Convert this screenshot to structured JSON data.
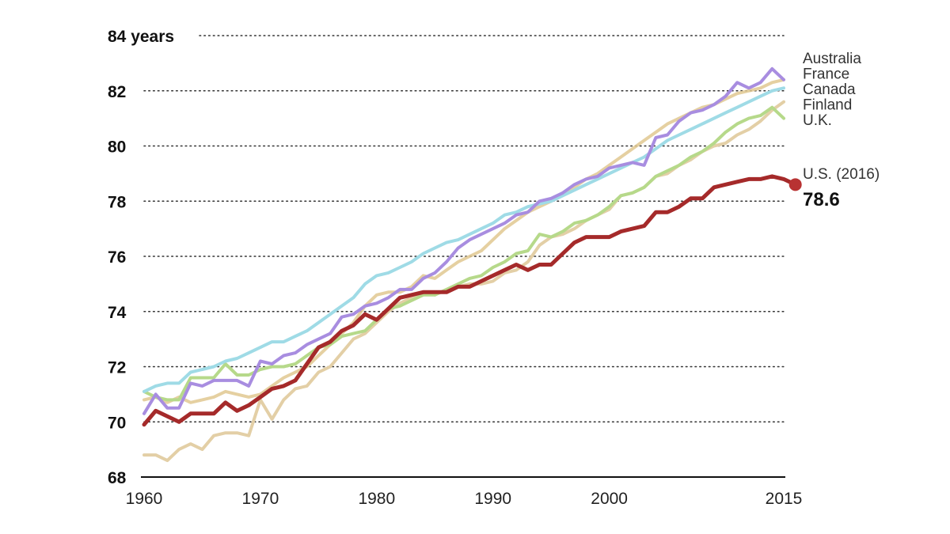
{
  "chart_data": {
    "type": "line",
    "title": "",
    "xlabel": "",
    "ylabel": "",
    "xlim": [
      1960,
      2015
    ],
    "ylim": [
      68,
      84
    ],
    "y_ticks": [
      {
        "value": 84,
        "label": "84 years"
      },
      {
        "value": 82,
        "label": "82"
      },
      {
        "value": 80,
        "label": "80"
      },
      {
        "value": 78,
        "label": "78"
      },
      {
        "value": 76,
        "label": "76"
      },
      {
        "value": 74,
        "label": "74"
      },
      {
        "value": 72,
        "label": "72"
      },
      {
        "value": 70,
        "label": "70"
      },
      {
        "value": 68,
        "label": "68"
      }
    ],
    "x_ticks": [
      {
        "value": 1960,
        "label": "1960"
      },
      {
        "value": 1970,
        "label": "1970"
      },
      {
        "value": 1980,
        "label": "1980"
      },
      {
        "value": 1990,
        "label": "1990"
      },
      {
        "value": 2000,
        "label": "2000"
      },
      {
        "value": 2015,
        "label": "2015"
      }
    ],
    "grid": true,
    "legend_position": "right",
    "series": [
      {
        "name": "Australia",
        "color": "#e0c890",
        "x": [
          1960,
          1961,
          1962,
          1963,
          1964,
          1965,
          1966,
          1967,
          1968,
          1969,
          1970,
          1971,
          1972,
          1973,
          1974,
          1975,
          1976,
          1977,
          1978,
          1979,
          1980,
          1981,
          1982,
          1983,
          1984,
          1985,
          1986,
          1987,
          1988,
          1989,
          1990,
          1991,
          1992,
          1993,
          1994,
          1995,
          1996,
          1997,
          1998,
          1999,
          2000,
          2001,
          2002,
          2003,
          2004,
          2005,
          2006,
          2007,
          2008,
          2009,
          2010,
          2011,
          2012,
          2013,
          2014,
          2015
        ],
        "y": [
          70.8,
          70.9,
          70.7,
          70.9,
          70.7,
          70.8,
          70.9,
          71.1,
          71.0,
          70.9,
          71.0,
          71.3,
          71.6,
          71.8,
          72.0,
          72.4,
          72.8,
          73.2,
          73.6,
          74.2,
          74.6,
          74.7,
          74.7,
          74.9,
          75.3,
          75.2,
          75.5,
          75.8,
          76.0,
          76.2,
          76.6,
          77.0,
          77.3,
          77.6,
          77.8,
          78.0,
          78.3,
          78.5,
          78.8,
          79.0,
          79.3,
          79.6,
          79.9,
          80.2,
          80.5,
          80.8,
          81.0,
          81.2,
          81.4,
          81.5,
          81.7,
          81.9,
          82.0,
          82.1,
          82.3,
          82.4
        ]
      },
      {
        "name": "France",
        "color": "#a88de0",
        "x": [
          1960,
          1961,
          1962,
          1963,
          1964,
          1965,
          1966,
          1967,
          1968,
          1969,
          1970,
          1971,
          1972,
          1973,
          1974,
          1975,
          1976,
          1977,
          1978,
          1979,
          1980,
          1981,
          1982,
          1983,
          1984,
          1985,
          1986,
          1987,
          1988,
          1989,
          1990,
          1991,
          1992,
          1993,
          1994,
          1995,
          1996,
          1997,
          1998,
          1999,
          2000,
          2001,
          2002,
          2003,
          2004,
          2005,
          2006,
          2007,
          2008,
          2009,
          2010,
          2011,
          2012,
          2013,
          2014,
          2015
        ],
        "y": [
          70.3,
          71.0,
          70.5,
          70.5,
          71.4,
          71.3,
          71.5,
          71.5,
          71.5,
          71.3,
          72.2,
          72.1,
          72.4,
          72.5,
          72.8,
          73.0,
          73.2,
          73.8,
          73.9,
          74.2,
          74.3,
          74.5,
          74.8,
          74.8,
          75.2,
          75.4,
          75.8,
          76.3,
          76.6,
          76.8,
          77.0,
          77.2,
          77.5,
          77.6,
          78.0,
          78.1,
          78.3,
          78.6,
          78.8,
          78.9,
          79.2,
          79.3,
          79.4,
          79.3,
          80.3,
          80.4,
          80.9,
          81.2,
          81.3,
          81.5,
          81.8,
          82.3,
          82.1,
          82.3,
          82.8,
          82.4
        ]
      },
      {
        "name": "Canada",
        "color": "#9fdbe6",
        "x": [
          1960,
          1961,
          1962,
          1963,
          1964,
          1965,
          1966,
          1967,
          1968,
          1969,
          1970,
          1971,
          1972,
          1973,
          1974,
          1975,
          1976,
          1977,
          1978,
          1979,
          1980,
          1981,
          1982,
          1983,
          1984,
          1985,
          1986,
          1987,
          1988,
          1989,
          1990,
          1991,
          1992,
          1993,
          1994,
          1995,
          1996,
          1997,
          1998,
          1999,
          2000,
          2001,
          2002,
          2003,
          2004,
          2005,
          2006,
          2007,
          2008,
          2009,
          2010,
          2011,
          2012,
          2013,
          2014,
          2015
        ],
        "y": [
          71.1,
          71.3,
          71.4,
          71.4,
          71.8,
          71.9,
          72.0,
          72.2,
          72.3,
          72.5,
          72.7,
          72.9,
          72.9,
          73.1,
          73.3,
          73.6,
          73.9,
          74.2,
          74.5,
          75.0,
          75.3,
          75.4,
          75.6,
          75.8,
          76.1,
          76.3,
          76.5,
          76.6,
          76.8,
          77.0,
          77.2,
          77.5,
          77.6,
          77.8,
          77.9,
          78.0,
          78.2,
          78.4,
          78.6,
          78.8,
          79.0,
          79.2,
          79.4,
          79.6,
          79.9,
          80.2,
          80.4,
          80.6,
          80.8,
          81.0,
          81.2,
          81.4,
          81.6,
          81.8,
          82.0,
          82.1
        ]
      },
      {
        "name": "Finland",
        "color": "#e3cfa6",
        "x": [
          1960,
          1961,
          1962,
          1963,
          1964,
          1965,
          1966,
          1967,
          1968,
          1969,
          1970,
          1971,
          1972,
          1973,
          1974,
          1975,
          1976,
          1977,
          1978,
          1979,
          1980,
          1981,
          1982,
          1983,
          1984,
          1985,
          1986,
          1987,
          1988,
          1989,
          1990,
          1991,
          1992,
          1993,
          1994,
          1995,
          1996,
          1997,
          1998,
          1999,
          2000,
          2001,
          2002,
          2003,
          2004,
          2005,
          2006,
          2007,
          2008,
          2009,
          2010,
          2011,
          2012,
          2013,
          2014,
          2015
        ],
        "y": [
          68.8,
          68.8,
          68.6,
          69.0,
          69.2,
          69.0,
          69.5,
          69.6,
          69.6,
          69.5,
          70.8,
          70.1,
          70.8,
          71.2,
          71.3,
          71.8,
          72.0,
          72.5,
          73.0,
          73.2,
          73.6,
          74.0,
          74.3,
          74.5,
          74.7,
          74.6,
          74.8,
          74.9,
          75.0,
          75.0,
          75.1,
          75.4,
          75.5,
          75.8,
          76.4,
          76.7,
          76.8,
          77.0,
          77.3,
          77.5,
          77.7,
          78.2,
          78.3,
          78.5,
          78.9,
          79.0,
          79.3,
          79.5,
          79.8,
          80.0,
          80.1,
          80.4,
          80.6,
          80.9,
          81.3,
          81.6
        ]
      },
      {
        "name": "U.K.",
        "color": "#b6d98a",
        "x": [
          1960,
          1961,
          1962,
          1963,
          1964,
          1965,
          1966,
          1967,
          1968,
          1969,
          1970,
          1971,
          1972,
          1973,
          1974,
          1975,
          1976,
          1977,
          1978,
          1979,
          1980,
          1981,
          1982,
          1983,
          1984,
          1985,
          1986,
          1987,
          1988,
          1989,
          1990,
          1991,
          1992,
          1993,
          1994,
          1995,
          1996,
          1997,
          1998,
          1999,
          2000,
          2001,
          2002,
          2003,
          2004,
          2005,
          2006,
          2007,
          2008,
          2009,
          2010,
          2011,
          2012,
          2013,
          2014,
          2015
        ],
        "y": [
          71.1,
          70.9,
          70.8,
          70.8,
          71.6,
          71.6,
          71.6,
          72.1,
          71.7,
          71.7,
          71.9,
          72.0,
          72.0,
          72.1,
          72.4,
          72.7,
          72.8,
          73.1,
          73.2,
          73.3,
          73.7,
          74.1,
          74.2,
          74.4,
          74.6,
          74.6,
          74.8,
          75.0,
          75.2,
          75.3,
          75.6,
          75.8,
          76.1,
          76.2,
          76.8,
          76.7,
          76.9,
          77.2,
          77.3,
          77.5,
          77.8,
          78.2,
          78.3,
          78.5,
          78.9,
          79.1,
          79.3,
          79.6,
          79.8,
          80.1,
          80.5,
          80.8,
          81.0,
          81.1,
          81.4,
          81.0
        ]
      },
      {
        "name": "U.S.",
        "color": "#a52a2a",
        "x": [
          1960,
          1961,
          1962,
          1963,
          1964,
          1965,
          1966,
          1967,
          1968,
          1969,
          1970,
          1971,
          1972,
          1973,
          1974,
          1975,
          1976,
          1977,
          1978,
          1979,
          1980,
          1981,
          1982,
          1983,
          1984,
          1985,
          1986,
          1987,
          1988,
          1989,
          1990,
          1991,
          1992,
          1993,
          1994,
          1995,
          1996,
          1997,
          1998,
          1999,
          2000,
          2001,
          2002,
          2003,
          2004,
          2005,
          2006,
          2007,
          2008,
          2009,
          2010,
          2011,
          2012,
          2013,
          2014,
          2015,
          2016
        ],
        "y": [
          69.9,
          70.4,
          70.2,
          70.0,
          70.3,
          70.3,
          70.3,
          70.7,
          70.4,
          70.6,
          70.9,
          71.2,
          71.3,
          71.5,
          72.1,
          72.7,
          72.9,
          73.3,
          73.5,
          73.9,
          73.7,
          74.1,
          74.5,
          74.6,
          74.7,
          74.7,
          74.7,
          74.9,
          74.9,
          75.1,
          75.3,
          75.5,
          75.7,
          75.5,
          75.7,
          75.7,
          76.1,
          76.5,
          76.7,
          76.7,
          76.7,
          76.9,
          77.0,
          77.1,
          77.6,
          77.6,
          77.8,
          78.1,
          78.1,
          78.5,
          78.6,
          78.7,
          78.8,
          78.8,
          78.9,
          78.8,
          78.6
        ]
      }
    ],
    "annotations": {
      "legend_labels": [
        "Australia",
        "France",
        "Canada",
        "Finland",
        "U.K."
      ],
      "us_label": "U.S. (2016)",
      "us_value_label": "78.6",
      "us_value": 78.6,
      "us_year": 2016
    }
  }
}
